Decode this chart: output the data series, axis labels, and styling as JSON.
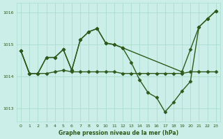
{
  "background_color": "#cceee8",
  "grid_color": "#aaddcc",
  "line_color": "#2d5a1b",
  "title": "Graphe pression niveau de la mer (hPa)",
  "xlim": [
    -0.5,
    23.5
  ],
  "ylim": [
    1012.6,
    1016.3
  ],
  "yticks": [
    1013,
    1014,
    1015,
    1016
  ],
  "xticks": [
    0,
    1,
    2,
    3,
    4,
    5,
    6,
    7,
    8,
    9,
    10,
    11,
    12,
    13,
    14,
    15,
    16,
    17,
    18,
    19,
    20,
    21,
    22,
    23
  ],
  "series": [
    {
      "x": [
        0,
        1,
        2,
        3,
        4,
        5,
        6,
        7,
        8,
        9,
        10,
        11,
        12,
        19,
        20,
        21,
        22,
        23
      ],
      "y": [
        1014.8,
        1014.1,
        1014.1,
        1014.6,
        1014.6,
        1014.85,
        1014.2,
        1015.15,
        1015.4,
        1015.5,
        1015.05,
        1015.0,
        1014.9,
        1014.15,
        1014.85,
        1015.55,
        1015.8,
        1016.05
      ]
    },
    {
      "x": [
        0,
        1,
        2,
        3,
        4,
        5,
        6,
        7,
        8,
        9,
        10,
        11,
        12,
        13,
        14,
        15,
        16,
        17,
        18,
        19,
        20,
        21,
        22,
        23
      ],
      "y": [
        1014.8,
        1014.1,
        1014.1,
        1014.6,
        1014.6,
        1014.85,
        1014.2,
        1015.15,
        1015.4,
        1015.5,
        1015.05,
        1015.0,
        1014.9,
        1014.45,
        1013.9,
        1013.5,
        1013.35,
        1012.9,
        1013.2,
        1013.55,
        1013.85,
        1015.55,
        1015.8,
        1016.05
      ]
    },
    {
      "x": [
        0,
        1,
        2,
        3,
        4,
        5,
        6,
        7,
        8,
        9,
        10,
        11,
        12,
        13,
        14,
        15,
        16,
        17,
        18,
        19,
        20,
        21,
        22,
        23
      ],
      "y": [
        1014.8,
        1014.1,
        1014.1,
        1014.1,
        1014.15,
        1014.2,
        1014.15,
        1014.15,
        1014.15,
        1014.15,
        1014.15,
        1014.15,
        1014.1,
        1014.1,
        1014.1,
        1014.1,
        1014.1,
        1014.1,
        1014.1,
        1014.1,
        1014.15,
        1014.15,
        1014.15,
        1014.15
      ]
    }
  ],
  "marker": "D",
  "markersize": 2.5,
  "linewidth": 1.0
}
